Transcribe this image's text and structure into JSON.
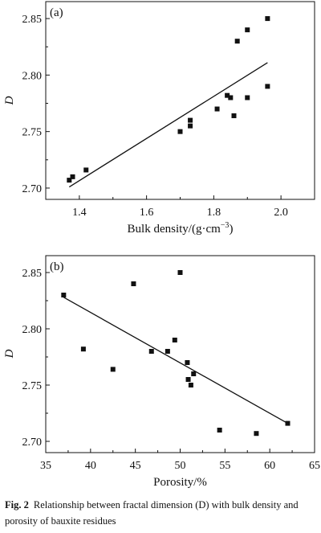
{
  "chart_data": [
    {
      "type": "scatter",
      "panel_label": "(a)",
      "xlabel": "Bulk density/(g·cm",
      "xlabel_sup": "−3",
      "xlabel_close": ")",
      "ylabel": "D",
      "xlim": [
        1.3,
        2.1
      ],
      "ylim": [
        2.69,
        2.865
      ],
      "xticks": [
        1.4,
        1.6,
        1.8,
        2.0
      ],
      "xtick_labels": [
        "1.4",
        "1.6",
        "1.8",
        "2.0"
      ],
      "yticks": [
        2.7,
        2.75,
        2.8,
        2.85
      ],
      "ytick_labels": [
        "2.70",
        "2.75",
        "2.80",
        "2.85"
      ],
      "grid": false,
      "points": [
        {
          "x": 1.37,
          "y": 2.707
        },
        {
          "x": 1.38,
          "y": 2.71
        },
        {
          "x": 1.42,
          "y": 2.716
        },
        {
          "x": 1.7,
          "y": 2.75
        },
        {
          "x": 1.73,
          "y": 2.755
        },
        {
          "x": 1.73,
          "y": 2.76
        },
        {
          "x": 1.81,
          "y": 2.77
        },
        {
          "x": 1.84,
          "y": 2.782
        },
        {
          "x": 1.85,
          "y": 2.78
        },
        {
          "x": 1.86,
          "y": 2.764
        },
        {
          "x": 1.87,
          "y": 2.83
        },
        {
          "x": 1.9,
          "y": 2.84
        },
        {
          "x": 1.9,
          "y": 2.78
        },
        {
          "x": 1.96,
          "y": 2.85
        },
        {
          "x": 1.96,
          "y": 2.79
        }
      ],
      "fit_line": [
        {
          "x": 1.37,
          "y": 2.701
        },
        {
          "x": 1.96,
          "y": 2.811
        }
      ]
    },
    {
      "type": "scatter",
      "panel_label": "(b)",
      "xlabel": "Porosity/%",
      "ylabel": "D",
      "xlim": [
        35,
        65
      ],
      "ylim": [
        2.69,
        2.865
      ],
      "xticks": [
        35,
        40,
        45,
        50,
        55,
        60,
        65
      ],
      "xtick_labels": [
        "35",
        "40",
        "45",
        "50",
        "55",
        "60",
        "65"
      ],
      "yticks": [
        2.7,
        2.75,
        2.8,
        2.85
      ],
      "ytick_labels": [
        "2.70",
        "2.75",
        "2.80",
        "2.85"
      ],
      "grid": false,
      "points": [
        {
          "x": 37.0,
          "y": 2.83
        },
        {
          "x": 39.2,
          "y": 2.782
        },
        {
          "x": 42.5,
          "y": 2.764
        },
        {
          "x": 44.8,
          "y": 2.84
        },
        {
          "x": 46.8,
          "y": 2.78
        },
        {
          "x": 48.6,
          "y": 2.78
        },
        {
          "x": 49.4,
          "y": 2.79
        },
        {
          "x": 50.0,
          "y": 2.85
        },
        {
          "x": 50.8,
          "y": 2.77
        },
        {
          "x": 50.9,
          "y": 2.755
        },
        {
          "x": 51.2,
          "y": 2.75
        },
        {
          "x": 51.5,
          "y": 2.76
        },
        {
          "x": 54.4,
          "y": 2.71
        },
        {
          "x": 58.5,
          "y": 2.707
        },
        {
          "x": 62.0,
          "y": 2.716
        }
      ],
      "fit_line": [
        {
          "x": 37.0,
          "y": 2.828
        },
        {
          "x": 62.0,
          "y": 2.716
        }
      ]
    }
  ],
  "caption": {
    "label": "Fig. 2",
    "text": "Relationship between fractal dimension (D) with bulk density and porosity of bauxite residues"
  }
}
